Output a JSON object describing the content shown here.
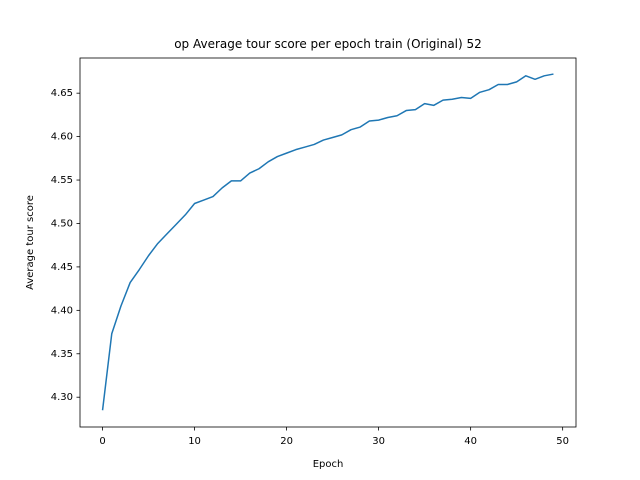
{
  "chart_data": {
    "type": "line",
    "title": "op Average tour score per epoch train (Original) 52",
    "xlabel": "Epoch",
    "ylabel": "Average tour score",
    "xlim": [
      -2.45,
      51.45
    ],
    "ylim": [
      4.2657,
      4.6905
    ],
    "xticks": [
      0,
      10,
      20,
      30,
      40,
      50
    ],
    "yticks": [
      4.3,
      4.35,
      4.4,
      4.45,
      4.5,
      4.55,
      4.6,
      4.65
    ],
    "ytick_labels": [
      "4.30",
      "4.35",
      "4.40",
      "4.45",
      "4.50",
      "4.55",
      "4.60",
      "4.65"
    ],
    "grid": false,
    "series": [
      {
        "color": "#1f77b4",
        "x": [
          0,
          1,
          2,
          3,
          4,
          5,
          6,
          7,
          8,
          9,
          10,
          11,
          12,
          13,
          14,
          15,
          16,
          17,
          18,
          19,
          20,
          21,
          22,
          23,
          24,
          25,
          26,
          27,
          28,
          29,
          30,
          31,
          32,
          33,
          34,
          35,
          36,
          37,
          38,
          39,
          40,
          41,
          42,
          43,
          44,
          45,
          46,
          47,
          48,
          49
        ],
        "values": [
          4.285,
          4.373,
          4.405,
          4.432,
          4.447,
          4.463,
          4.477,
          4.488,
          4.499,
          4.51,
          4.523,
          4.527,
          4.531,
          4.541,
          4.549,
          4.549,
          4.558,
          4.563,
          4.571,
          4.577,
          4.581,
          4.585,
          4.588,
          4.591,
          4.596,
          4.599,
          4.602,
          4.608,
          4.611,
          4.618,
          4.619,
          4.622,
          4.624,
          4.63,
          4.631,
          4.638,
          4.636,
          4.642,
          4.643,
          4.645,
          4.644,
          4.651,
          4.654,
          4.66,
          4.66,
          4.663,
          4.67,
          4.666,
          4.67,
          4.672
        ]
      }
    ]
  }
}
